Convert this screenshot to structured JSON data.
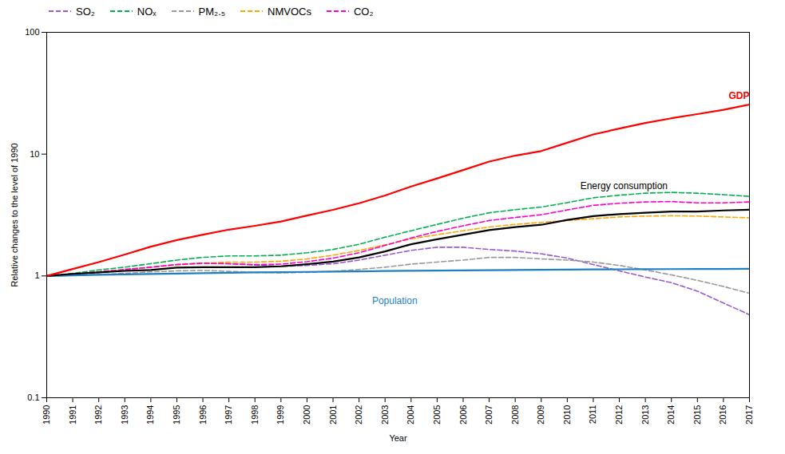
{
  "chart_data": {
    "type": "line",
    "x": [
      1990,
      1991,
      1992,
      1993,
      1994,
      1995,
      1996,
      1997,
      1998,
      1999,
      2000,
      2001,
      2002,
      2003,
      2004,
      2005,
      2006,
      2007,
      2008,
      2009,
      2010,
      2011,
      2012,
      2013,
      2014,
      2015,
      2016,
      2017
    ],
    "series": [
      {
        "name": "SO₂",
        "color": "#9b59d0",
        "line_style": "dashed",
        "values": [
          1.0,
          1.03,
          1.07,
          1.12,
          1.18,
          1.24,
          1.28,
          1.26,
          1.23,
          1.2,
          1.22,
          1.26,
          1.35,
          1.48,
          1.62,
          1.72,
          1.72,
          1.65,
          1.6,
          1.52,
          1.4,
          1.24,
          1.1,
          0.98,
          0.88,
          0.75,
          0.6,
          0.48
        ]
      },
      {
        "name": "NOₓ",
        "color": "#00b050",
        "line_style": "dashed",
        "values": [
          1.0,
          1.05,
          1.12,
          1.18,
          1.26,
          1.35,
          1.42,
          1.46,
          1.46,
          1.48,
          1.55,
          1.65,
          1.82,
          2.08,
          2.35,
          2.65,
          2.98,
          3.3,
          3.5,
          3.68,
          4.0,
          4.38,
          4.6,
          4.78,
          4.85,
          4.78,
          4.65,
          4.5
        ]
      },
      {
        "name": "PM₂.₅",
        "color": "#999999",
        "line_style": "dashed",
        "values": [
          1.0,
          1.01,
          1.03,
          1.05,
          1.08,
          1.1,
          1.11,
          1.09,
          1.07,
          1.06,
          1.07,
          1.09,
          1.13,
          1.18,
          1.25,
          1.3,
          1.35,
          1.42,
          1.42,
          1.38,
          1.35,
          1.3,
          1.22,
          1.12,
          1.02,
          0.92,
          0.82,
          0.72
        ]
      },
      {
        "name": "NMVOCs",
        "color": "#ffa500",
        "line_style": "dashed",
        "values": [
          1.0,
          1.04,
          1.08,
          1.13,
          1.18,
          1.23,
          1.27,
          1.3,
          1.3,
          1.32,
          1.38,
          1.48,
          1.62,
          1.8,
          2.02,
          2.18,
          2.35,
          2.52,
          2.65,
          2.75,
          2.85,
          2.95,
          3.05,
          3.1,
          3.12,
          3.1,
          3.05,
          3.0
        ]
      },
      {
        "name": "CO₂",
        "color": "#ff00cc",
        "line_style": "dashed",
        "values": [
          1.0,
          1.04,
          1.08,
          1.13,
          1.18,
          1.24,
          1.27,
          1.26,
          1.24,
          1.25,
          1.31,
          1.4,
          1.55,
          1.78,
          2.05,
          2.32,
          2.58,
          2.85,
          3.02,
          3.18,
          3.48,
          3.8,
          3.95,
          4.05,
          4.08,
          3.98,
          3.98,
          4.05
        ]
      },
      {
        "name": "Population",
        "color": "#1e7fc4",
        "line_style": "solid",
        "values": [
          1.0,
          1.011,
          1.021,
          1.03,
          1.039,
          1.047,
          1.055,
          1.062,
          1.068,
          1.074,
          1.08,
          1.086,
          1.091,
          1.097,
          1.102,
          1.107,
          1.112,
          1.116,
          1.12,
          1.124,
          1.127,
          1.131,
          1.134,
          1.136,
          1.138,
          1.14,
          1.141,
          1.143
        ]
      },
      {
        "name": "Energy consumption",
        "color": "#000000",
        "line_style": "solid",
        "values": [
          1.0,
          1.04,
          1.07,
          1.1,
          1.12,
          1.17,
          1.18,
          1.18,
          1.18,
          1.2,
          1.25,
          1.31,
          1.42,
          1.59,
          1.82,
          2.0,
          2.18,
          2.38,
          2.52,
          2.63,
          2.88,
          3.1,
          3.22,
          3.3,
          3.38,
          3.38,
          3.45,
          3.5
        ]
      },
      {
        "name": "GDP",
        "color": "#ff0000",
        "line_style": "solid",
        "values": [
          1.0,
          1.14,
          1.3,
          1.5,
          1.74,
          1.97,
          2.18,
          2.4,
          2.58,
          2.8,
          3.13,
          3.49,
          3.95,
          4.58,
          5.42,
          6.32,
          7.4,
          8.68,
          9.72,
          10.6,
          12.4,
          14.5,
          16.2,
          18.0,
          19.7,
          21.3,
          23.1,
          25.5
        ]
      }
    ],
    "annotations": [
      {
        "text": "GDP",
        "x": 2016.2,
        "y": 30,
        "color": "#ff0000"
      },
      {
        "text": "Energy consumption",
        "x": 2010.5,
        "y": 5.5,
        "color": "#000000"
      },
      {
        "text": "Population",
        "x": 2002.5,
        "y": 0.62,
        "color": "#1e7fc4"
      }
    ],
    "xlabel": "Year",
    "ylabel": "Relative changes to the level of 1990",
    "xlim": [
      1990,
      2017
    ],
    "xticks": [
      1990,
      1991,
      1992,
      1993,
      1994,
      1995,
      1996,
      1997,
      1998,
      1999,
      2000,
      2001,
      2002,
      2003,
      2004,
      2005,
      2006,
      2007,
      2008,
      2009,
      2010,
      2011,
      2012,
      2013,
      2014,
      2015,
      2016,
      2017
    ],
    "ylim": [
      0.1,
      100
    ],
    "yticks": [
      0.1,
      1,
      10,
      100
    ],
    "log": "y",
    "grid": false,
    "legend": "upper left"
  }
}
